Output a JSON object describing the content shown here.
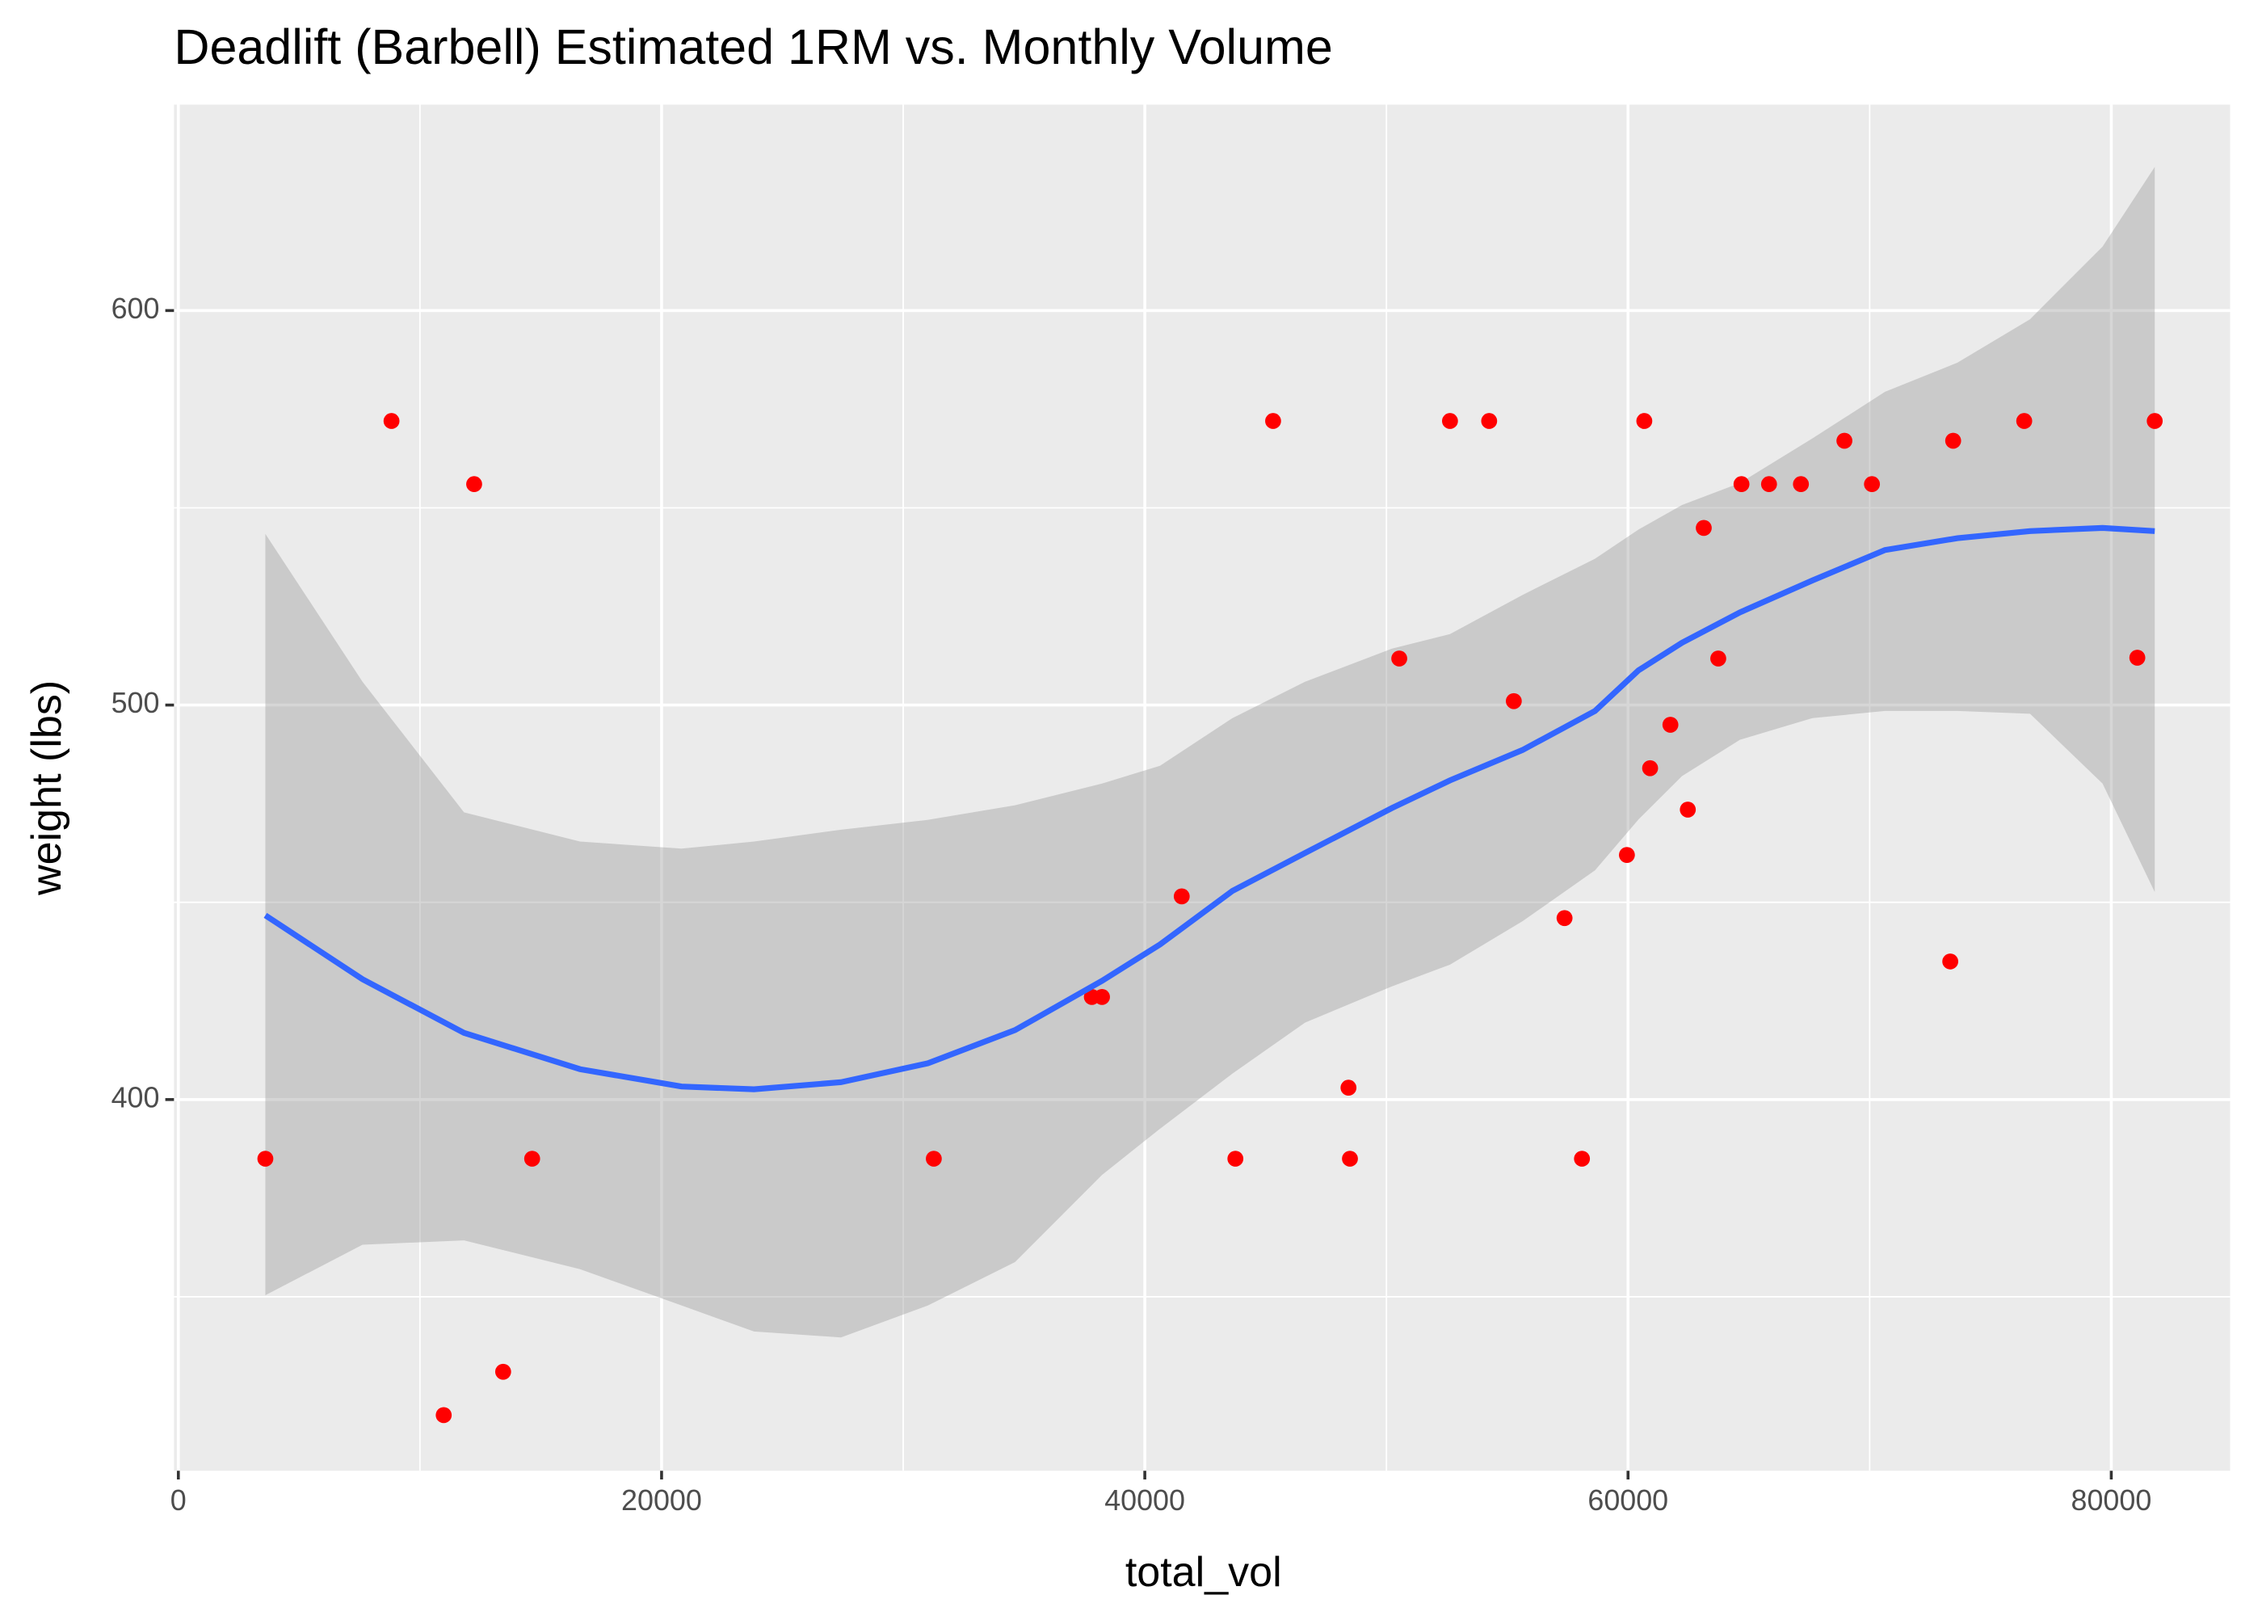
{
  "chart_data": {
    "type": "scatter",
    "title": "Deadlift (Barbell) Estimated 1RM vs. Monthly Volume",
    "x_label": "total_vol",
    "y_label": "weight (lbs)",
    "x": [
      3601,
      8822,
      12243,
      10983,
      13443,
      14643,
      31267,
      37808,
      38228,
      41528,
      43749,
      45310,
      48430,
      48490,
      50531,
      52631,
      54252,
      55272,
      57372,
      58093,
      59953,
      60673,
      60913,
      61753,
      62474,
      63134,
      63734,
      64695,
      65835,
      67155,
      68955,
      70095,
      73336,
      73456,
      76397,
      81078,
      81798
    ],
    "values": [
      385,
      572,
      556,
      320,
      331,
      385,
      385,
      426,
      426,
      451.5,
      385,
      572,
      403,
      385,
      511.8,
      572,
      572,
      501,
      446,
      385,
      462,
      572,
      484,
      495,
      473.5,
      544.9,
      511.8,
      556,
      556,
      556,
      567,
      556,
      435,
      567,
      572,
      512,
      572
    ],
    "color": "#ff0000",
    "smooth": {
      "color": "#3366ff",
      "fill": "#999999",
      "x": [
        3601,
        7622,
        11823,
        16624,
        20825,
        23825,
        27426,
        31027,
        34628,
        38229,
        40629,
        43630,
        46631,
        50231,
        52632,
        55632,
        58633,
        60433,
        62234,
        64634,
        67635,
        70636,
        73637,
        76638,
        79639,
        81799
      ],
      "y": [
        446.7,
        430.5,
        416.9,
        407.7,
        403.3,
        402.6,
        404.4,
        409.2,
        417.6,
        430.1,
        439.3,
        452.9,
        462.5,
        473.9,
        480.9,
        488.6,
        498.5,
        508.8,
        515.8,
        523.5,
        531.6,
        539.3,
        542.3,
        544.1,
        544.9,
        544.1
      ],
      "upper": [
        543.4,
        505.9,
        472.8,
        465.4,
        463.6,
        465.4,
        468.4,
        470.9,
        474.6,
        480.1,
        484.6,
        496.7,
        505.9,
        514.3,
        518.0,
        527.9,
        537.1,
        544.5,
        550.7,
        556.3,
        567.6,
        579.4,
        586.8,
        597.8,
        616.2,
        636.4
      ],
      "lower": [
        350.4,
        363.2,
        364.3,
        357.0,
        347.8,
        341.2,
        339.7,
        347.8,
        358.8,
        380.9,
        392.6,
        406.6,
        419.5,
        428.7,
        434.2,
        445.2,
        458.1,
        471.0,
        482.0,
        491.2,
        496.7,
        498.5,
        498.5,
        497.8,
        480.1,
        452.6
      ]
    },
    "xlim": [
      -180,
      84918
    ],
    "ylim": [
      305.9,
      652.2
    ],
    "xticks": [
      0,
      20000,
      40000,
      60000,
      80000
    ],
    "yticks": [
      400,
      500,
      600
    ],
    "x_minor_breaks": [
      10000,
      30000,
      50000,
      70000
    ],
    "y_minor_breaks": [
      350,
      450,
      550
    ],
    "grid": true,
    "panel_color": "#ebebeb"
  }
}
